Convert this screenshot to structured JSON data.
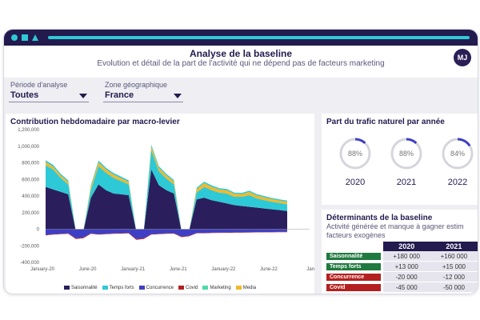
{
  "header": {
    "title": "Analyse de la baseline",
    "subtitle": "Evolution et détail de la part de l'activité qui ne dépend pas de facteurs marketing",
    "avatar_initials": "MJ"
  },
  "filters": [
    {
      "label": "Période d'analyse",
      "value": "Toutes"
    },
    {
      "label": "Zone géographique",
      "value": "France"
    }
  ],
  "colors": {
    "navy": "#231a4e",
    "accent": "#2ec9d6",
    "green_label": "#1f7a3f",
    "red_label": "#b3201f"
  },
  "contribution_panel": {
    "title": "Contribution hebdomadaire par macro-levier"
  },
  "gauges": {
    "title": "Part du trafic naturel par année",
    "items": [
      {
        "percent_label": "88%",
        "year": "2020",
        "value": 0.88
      },
      {
        "percent_label": "88%",
        "year": "2021",
        "value": 0.88
      },
      {
        "percent_label": "84%",
        "year": "2022",
        "value": 0.84
      }
    ]
  },
  "determinants": {
    "title": "Déterminants de la baseline",
    "subtitle_line1": "Activité générée et manque à gagner estim",
    "subtitle_line2": "facteurs exogènes",
    "columns": [
      "2020",
      "2021"
    ],
    "rows": [
      {
        "label": "Saisonnalité",
        "kind": "positive",
        "values": [
          "+180 000",
          "+160 000"
        ]
      },
      {
        "label": "Temps forts",
        "kind": "positive",
        "values": [
          "+13 000",
          "+15 000"
        ]
      },
      {
        "label": "Concurrence",
        "kind": "negative",
        "values": [
          "-20 000",
          "-12 000"
        ]
      },
      {
        "label": "Covid",
        "kind": "negative",
        "values": [
          "-45 000",
          "-50 000"
        ]
      }
    ]
  },
  "chart_data": {
    "type": "area",
    "title": "Contribution hebdomadaire par macro-levier",
    "y_ticks": [
      "1,200,000",
      "1,000,000",
      "800,000",
      "600,000",
      "400,000",
      "200,000",
      "0",
      "-200,000",
      "-400,000"
    ],
    "ylim": [
      -400000,
      1200000
    ],
    "x_ticks": [
      "January-20",
      "June-20",
      "January-21",
      "June-21",
      "January-22",
      "June-22",
      "Januar"
    ],
    "series": [
      {
        "name": "Saisonnalité",
        "color": "#2a1f5c",
        "stack": "pos",
        "values": [
          510000,
          480000,
          450000,
          420000,
          -20000,
          -20000,
          380000,
          540000,
          470000,
          430000,
          420000,
          410000,
          -20000,
          -20000,
          720000,
          530000,
          470000,
          430000,
          -20000,
          -20000,
          360000,
          380000,
          350000,
          330000,
          310000,
          290000,
          280000,
          270000,
          260000,
          250000,
          240000,
          230000,
          220000
        ]
      },
      {
        "name": "Temps forts",
        "color": "#2ec9d6",
        "stack": "pos",
        "values": [
          260000,
          240000,
          170000,
          120000,
          0,
          0,
          90000,
          220000,
          210000,
          190000,
          160000,
          130000,
          0,
          0,
          230000,
          170000,
          140000,
          110000,
          0,
          0,
          80000,
          130000,
          120000,
          110000,
          120000,
          100000,
          110000,
          140000,
          110000,
          100000,
          90000,
          85000,
          80000
        ]
      },
      {
        "name": "Media",
        "color": "#f2b82a",
        "stack": "pos",
        "values": [
          40000,
          35000,
          30000,
          30000,
          0,
          0,
          40000,
          45000,
          40000,
          38000,
          35000,
          30000,
          0,
          0,
          45000,
          40000,
          38000,
          35000,
          0,
          0,
          42000,
          45000,
          40000,
          38000,
          40000,
          36000,
          34000,
          38000,
          36000,
          34000,
          32000,
          30000,
          30000
        ]
      },
      {
        "name": "Marketing",
        "color": "#2ec9d6",
        "stack": "pos",
        "values": [
          20000,
          20000,
          18000,
          18000,
          0,
          0,
          18000,
          22000,
          20000,
          20000,
          18000,
          18000,
          0,
          0,
          22000,
          20000,
          18000,
          18000,
          0,
          0,
          16000,
          18000,
          18000,
          16000,
          16000,
          15000,
          15000,
          16000,
          15000,
          15000,
          14000,
          14000,
          14000
        ]
      },
      {
        "name": "Concurrence",
        "color": "#3e3fc4",
        "stack": "neg",
        "values": [
          -70000,
          -60000,
          -55000,
          -50000,
          -110000,
          -100000,
          -50000,
          -60000,
          -55000,
          -50000,
          -48000,
          -45000,
          -120000,
          -110000,
          -60000,
          -55000,
          -50000,
          -48000,
          -90000,
          -80000,
          -45000,
          -45000,
          -42000,
          -40000,
          -40000,
          -38000,
          -38000,
          -36000,
          -35000,
          -35000,
          -34000,
          -33000,
          -32000
        ]
      },
      {
        "name": "Covid",
        "color": "#b3201f",
        "stack": "neg",
        "values": [
          -5000,
          -5000,
          -5000,
          -5000,
          -8000,
          -8000,
          -5000,
          -5000,
          -5000,
          -5000,
          -5000,
          -5000,
          -8000,
          -8000,
          -5000,
          -5000,
          -5000,
          -5000,
          -6000,
          -6000,
          -4000,
          -4000,
          -4000,
          -4000,
          -4000,
          -4000,
          -4000,
          -4000,
          -4000,
          -4000,
          -4000,
          -4000,
          -4000
        ]
      }
    ],
    "legend": [
      "Saisonnalité",
      "Temps forts",
      "Concurrence",
      "Covid",
      "Marketing",
      "Media"
    ],
    "grid": false,
    "legend_position": "bottom"
  }
}
